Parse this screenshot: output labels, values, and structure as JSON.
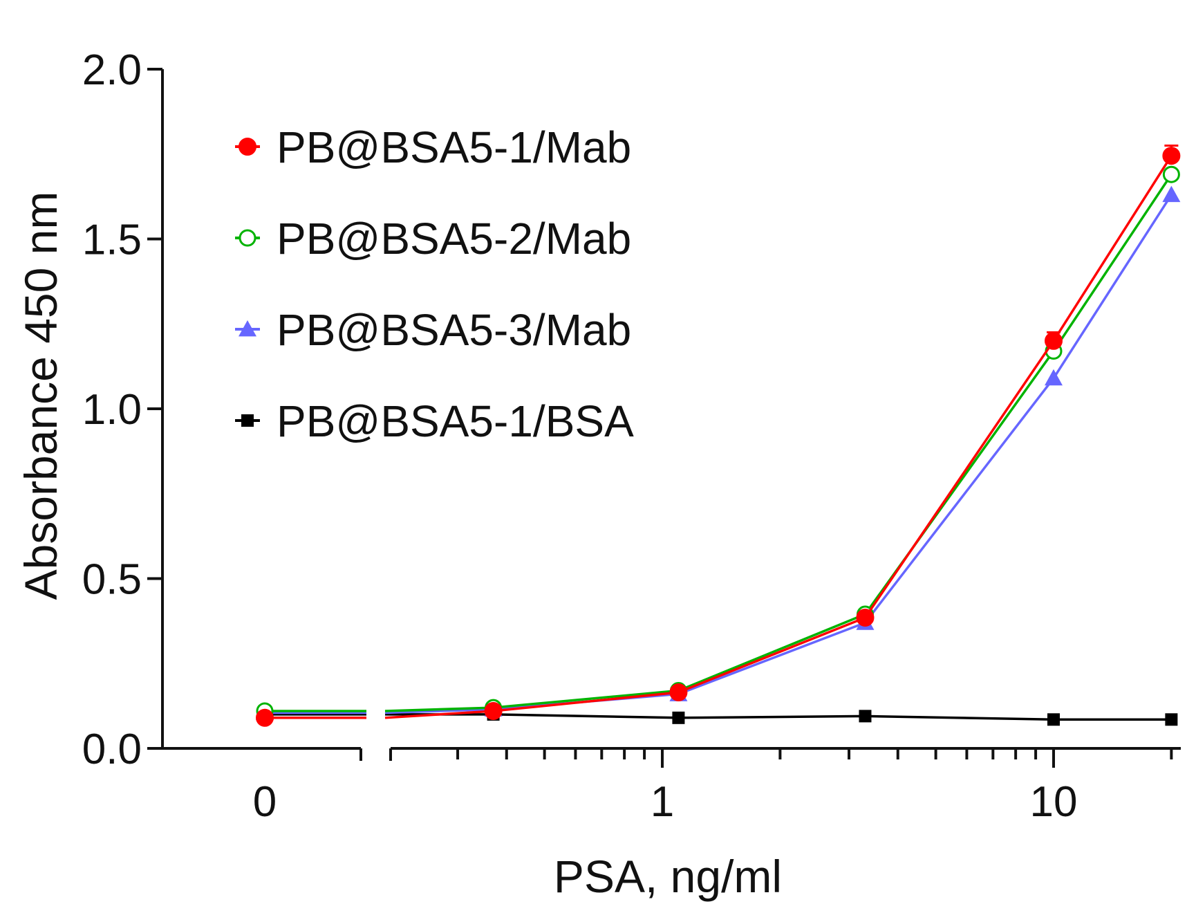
{
  "chart_data": {
    "type": "line",
    "title": "",
    "xlabel": "PSA, ng/ml",
    "ylabel": "Absorbance 450 nm",
    "xscale": "log with broken axis for 0",
    "x": [
      0,
      0.37,
      1.1,
      3.3,
      10,
      20
    ],
    "ylim": [
      0,
      2.0
    ],
    "y_ticks": [
      0.0,
      0.5,
      1.0,
      1.5,
      2.0
    ],
    "y_tick_labels": [
      "0.0",
      "0.5",
      "1.0",
      "1.5",
      "2.0"
    ],
    "x_tick_labels": [
      {
        "value": 0,
        "label": "0"
      },
      {
        "value": 1,
        "label": "1"
      },
      {
        "value": 10,
        "label": "10"
      }
    ],
    "grid": false,
    "legend_position": "top-left",
    "series": [
      {
        "name": "PB@BSA5-1/Mab",
        "color": "#ff0000",
        "marker": "filled-circle",
        "values": [
          0.09,
          0.11,
          0.165,
          0.385,
          1.2,
          1.745
        ],
        "errors": [
          0,
          0,
          0,
          0,
          0.025,
          0.03
        ]
      },
      {
        "name": "PB@BSA5-2/Mab",
        "color": "#00b300",
        "marker": "open-circle",
        "values": [
          0.11,
          0.12,
          0.17,
          0.395,
          1.17,
          1.69
        ],
        "errors": [
          0,
          0,
          0,
          0,
          0,
          0
        ]
      },
      {
        "name": "PB@BSA5-3/Mab",
        "color": "#6666ff",
        "marker": "filled-triangle",
        "values": [
          0.105,
          0.115,
          0.16,
          0.37,
          1.09,
          1.63
        ],
        "errors": [
          0,
          0,
          0,
          0,
          0,
          0
        ]
      },
      {
        "name": "PB@BSA5-1/BSA",
        "color": "#000000",
        "marker": "filled-square",
        "values": [
          0.1,
          0.1,
          0.09,
          0.095,
          0.085,
          0.085
        ],
        "errors": [
          0,
          0,
          0,
          0,
          0,
          0
        ]
      }
    ]
  }
}
